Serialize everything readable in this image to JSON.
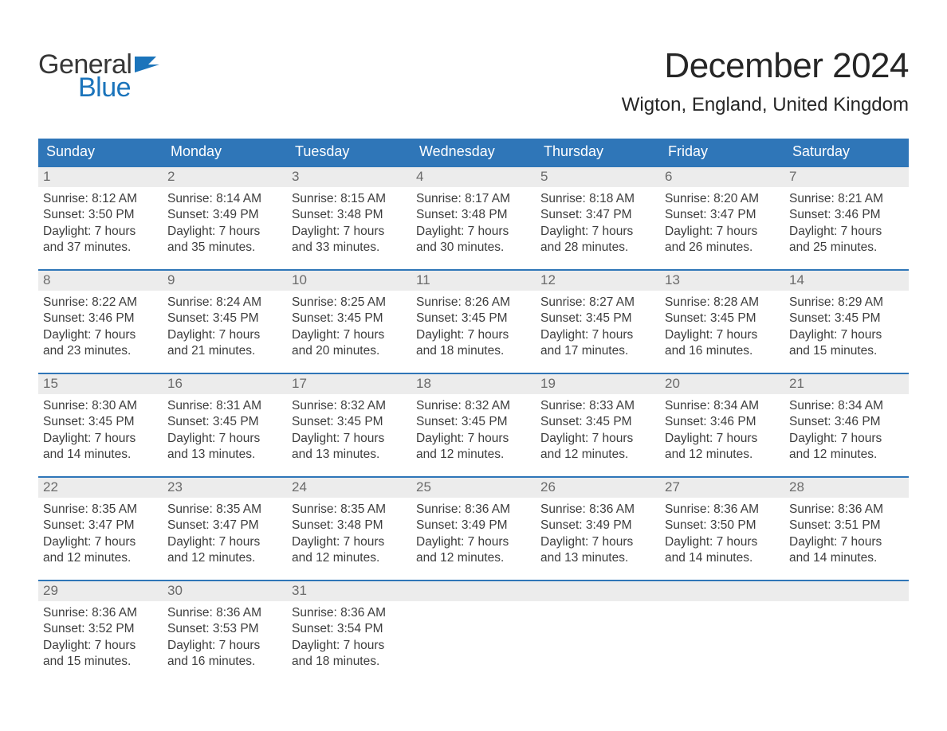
{
  "logo": {
    "text1": "General",
    "text2": "Blue",
    "text1_color": "#373737",
    "text2_color": "#1b74bb",
    "flag_color": "#1b74bb"
  },
  "title": "December 2024",
  "location": "Wigton, England, United Kingdom",
  "colors": {
    "header_bg": "#2f76b8",
    "header_text": "#ffffff",
    "daynum_bg": "#ececec",
    "daynum_text": "#6b6b6b",
    "body_text": "#3d3d3d",
    "week_border": "#2f76b8"
  },
  "day_names": [
    "Sunday",
    "Monday",
    "Tuesday",
    "Wednesday",
    "Thursday",
    "Friday",
    "Saturday"
  ],
  "weeks": [
    [
      {
        "n": "1",
        "sr": "Sunrise: 8:12 AM",
        "ss": "Sunset: 3:50 PM",
        "d1": "Daylight: 7 hours",
        "d2": "and 37 minutes."
      },
      {
        "n": "2",
        "sr": "Sunrise: 8:14 AM",
        "ss": "Sunset: 3:49 PM",
        "d1": "Daylight: 7 hours",
        "d2": "and 35 minutes."
      },
      {
        "n": "3",
        "sr": "Sunrise: 8:15 AM",
        "ss": "Sunset: 3:48 PM",
        "d1": "Daylight: 7 hours",
        "d2": "and 33 minutes."
      },
      {
        "n": "4",
        "sr": "Sunrise: 8:17 AM",
        "ss": "Sunset: 3:48 PM",
        "d1": "Daylight: 7 hours",
        "d2": "and 30 minutes."
      },
      {
        "n": "5",
        "sr": "Sunrise: 8:18 AM",
        "ss": "Sunset: 3:47 PM",
        "d1": "Daylight: 7 hours",
        "d2": "and 28 minutes."
      },
      {
        "n": "6",
        "sr": "Sunrise: 8:20 AM",
        "ss": "Sunset: 3:47 PM",
        "d1": "Daylight: 7 hours",
        "d2": "and 26 minutes."
      },
      {
        "n": "7",
        "sr": "Sunrise: 8:21 AM",
        "ss": "Sunset: 3:46 PM",
        "d1": "Daylight: 7 hours",
        "d2": "and 25 minutes."
      }
    ],
    [
      {
        "n": "8",
        "sr": "Sunrise: 8:22 AM",
        "ss": "Sunset: 3:46 PM",
        "d1": "Daylight: 7 hours",
        "d2": "and 23 minutes."
      },
      {
        "n": "9",
        "sr": "Sunrise: 8:24 AM",
        "ss": "Sunset: 3:45 PM",
        "d1": "Daylight: 7 hours",
        "d2": "and 21 minutes."
      },
      {
        "n": "10",
        "sr": "Sunrise: 8:25 AM",
        "ss": "Sunset: 3:45 PM",
        "d1": "Daylight: 7 hours",
        "d2": "and 20 minutes."
      },
      {
        "n": "11",
        "sr": "Sunrise: 8:26 AM",
        "ss": "Sunset: 3:45 PM",
        "d1": "Daylight: 7 hours",
        "d2": "and 18 minutes."
      },
      {
        "n": "12",
        "sr": "Sunrise: 8:27 AM",
        "ss": "Sunset: 3:45 PM",
        "d1": "Daylight: 7 hours",
        "d2": "and 17 minutes."
      },
      {
        "n": "13",
        "sr": "Sunrise: 8:28 AM",
        "ss": "Sunset: 3:45 PM",
        "d1": "Daylight: 7 hours",
        "d2": "and 16 minutes."
      },
      {
        "n": "14",
        "sr": "Sunrise: 8:29 AM",
        "ss": "Sunset: 3:45 PM",
        "d1": "Daylight: 7 hours",
        "d2": "and 15 minutes."
      }
    ],
    [
      {
        "n": "15",
        "sr": "Sunrise: 8:30 AM",
        "ss": "Sunset: 3:45 PM",
        "d1": "Daylight: 7 hours",
        "d2": "and 14 minutes."
      },
      {
        "n": "16",
        "sr": "Sunrise: 8:31 AM",
        "ss": "Sunset: 3:45 PM",
        "d1": "Daylight: 7 hours",
        "d2": "and 13 minutes."
      },
      {
        "n": "17",
        "sr": "Sunrise: 8:32 AM",
        "ss": "Sunset: 3:45 PM",
        "d1": "Daylight: 7 hours",
        "d2": "and 13 minutes."
      },
      {
        "n": "18",
        "sr": "Sunrise: 8:32 AM",
        "ss": "Sunset: 3:45 PM",
        "d1": "Daylight: 7 hours",
        "d2": "and 12 minutes."
      },
      {
        "n": "19",
        "sr": "Sunrise: 8:33 AM",
        "ss": "Sunset: 3:45 PM",
        "d1": "Daylight: 7 hours",
        "d2": "and 12 minutes."
      },
      {
        "n": "20",
        "sr": "Sunrise: 8:34 AM",
        "ss": "Sunset: 3:46 PM",
        "d1": "Daylight: 7 hours",
        "d2": "and 12 minutes."
      },
      {
        "n": "21",
        "sr": "Sunrise: 8:34 AM",
        "ss": "Sunset: 3:46 PM",
        "d1": "Daylight: 7 hours",
        "d2": "and 12 minutes."
      }
    ],
    [
      {
        "n": "22",
        "sr": "Sunrise: 8:35 AM",
        "ss": "Sunset: 3:47 PM",
        "d1": "Daylight: 7 hours",
        "d2": "and 12 minutes."
      },
      {
        "n": "23",
        "sr": "Sunrise: 8:35 AM",
        "ss": "Sunset: 3:47 PM",
        "d1": "Daylight: 7 hours",
        "d2": "and 12 minutes."
      },
      {
        "n": "24",
        "sr": "Sunrise: 8:35 AM",
        "ss": "Sunset: 3:48 PM",
        "d1": "Daylight: 7 hours",
        "d2": "and 12 minutes."
      },
      {
        "n": "25",
        "sr": "Sunrise: 8:36 AM",
        "ss": "Sunset: 3:49 PM",
        "d1": "Daylight: 7 hours",
        "d2": "and 12 minutes."
      },
      {
        "n": "26",
        "sr": "Sunrise: 8:36 AM",
        "ss": "Sunset: 3:49 PM",
        "d1": "Daylight: 7 hours",
        "d2": "and 13 minutes."
      },
      {
        "n": "27",
        "sr": "Sunrise: 8:36 AM",
        "ss": "Sunset: 3:50 PM",
        "d1": "Daylight: 7 hours",
        "d2": "and 14 minutes."
      },
      {
        "n": "28",
        "sr": "Sunrise: 8:36 AM",
        "ss": "Sunset: 3:51 PM",
        "d1": "Daylight: 7 hours",
        "d2": "and 14 minutes."
      }
    ],
    [
      {
        "n": "29",
        "sr": "Sunrise: 8:36 AM",
        "ss": "Sunset: 3:52 PM",
        "d1": "Daylight: 7 hours",
        "d2": "and 15 minutes."
      },
      {
        "n": "30",
        "sr": "Sunrise: 8:36 AM",
        "ss": "Sunset: 3:53 PM",
        "d1": "Daylight: 7 hours",
        "d2": "and 16 minutes."
      },
      {
        "n": "31",
        "sr": "Sunrise: 8:36 AM",
        "ss": "Sunset: 3:54 PM",
        "d1": "Daylight: 7 hours",
        "d2": "and 18 minutes."
      },
      {
        "empty": true
      },
      {
        "empty": true
      },
      {
        "empty": true
      },
      {
        "empty": true
      }
    ]
  ]
}
